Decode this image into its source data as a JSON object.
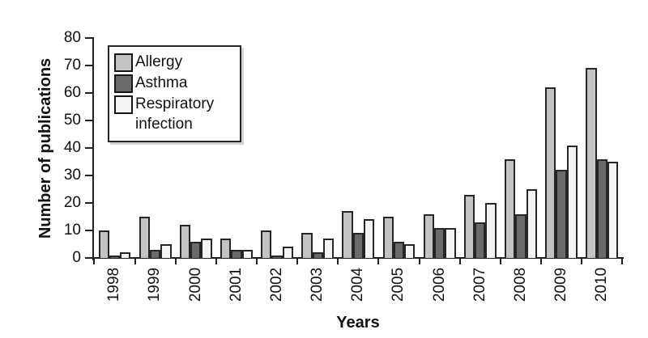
{
  "figure": {
    "background": "#ffffff"
  },
  "chart_data": {
    "type": "bar",
    "title": "",
    "xlabel": "Years",
    "ylabel": "Number of publications",
    "categories": [
      "1998",
      "1999",
      "2000",
      "2001",
      "2002",
      "2003",
      "2004",
      "2005",
      "2006",
      "2007",
      "2008",
      "2009",
      "2010"
    ],
    "series": [
      {
        "name": "Allergy",
        "color": "#c1c3c5",
        "values": [
          10,
          15,
          12,
          7,
          10,
          9,
          17,
          15,
          16,
          23,
          36,
          62,
          69
        ]
      },
      {
        "name": "Asthma",
        "color": "#696a6c",
        "values": [
          1,
          3,
          6,
          3,
          1,
          2,
          9,
          6,
          11,
          13,
          16,
          32,
          36
        ]
      },
      {
        "name": "Respiratory infection",
        "color": "#f4f4f4",
        "values": [
          2,
          5,
          7,
          3,
          4,
          7,
          14,
          5,
          11,
          20,
          25,
          41,
          35
        ]
      }
    ],
    "ylim": [
      0,
      80
    ],
    "ytick_step": 10,
    "yticks": [
      0,
      10,
      20,
      30,
      40,
      50,
      60,
      70,
      80
    ],
    "bar_border_color": "#262626",
    "axis_color": "#1f1f1f",
    "legend_position": "upper-left",
    "grid": false
  }
}
